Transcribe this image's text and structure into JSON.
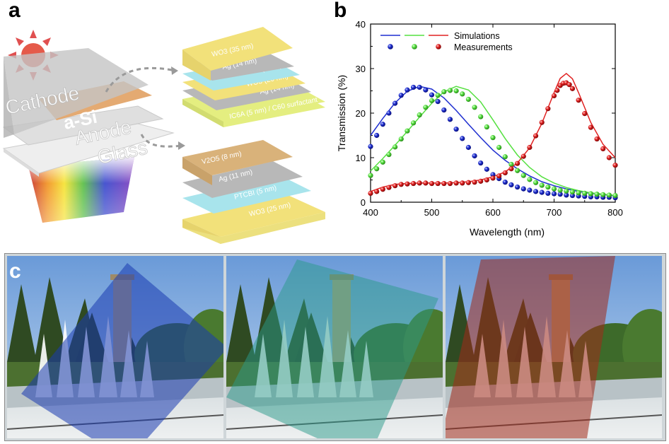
{
  "panels": {
    "a": {
      "letter": "a",
      "device_labels": [
        "Cathode",
        "a-Si",
        "Anode",
        "Glass"
      ],
      "stack_top": [
        "WO3 (35 nm)",
        "Ag (14 nm)",
        "PTCBI (5 nm)",
        "WO3 (20 nm)",
        "Ag (14 nm)",
        "IC6A (5 nm) / C60 surfactant"
      ],
      "stack_bottom": [
        "V2O5 (8 nm)",
        "Ag (11 nm)",
        "PTCBI (5 nm)",
        "WO3 (25 nm)"
      ],
      "colors": {
        "wo3": "#f2e17a",
        "ag": "#b8b8b8",
        "ptcbi": "#a8e4ec",
        "v2o5": "#d9b27a",
        "surfactant": "#e4ee80",
        "asi": "#e0a060"
      }
    },
    "b": {
      "letter": "b"
    },
    "c": {
      "letter": "c"
    }
  },
  "chart_data": {
    "type": "line",
    "xlabel": "Wavelength (nm)",
    "ylabel": "Transmission (%)",
    "xlim": [
      400,
      800
    ],
    "ylim": [
      0,
      40
    ],
    "xticks": [
      400,
      500,
      600,
      700,
      800
    ],
    "yticks": [
      0,
      10,
      20,
      30,
      40
    ],
    "grid": false,
    "legend": {
      "placement": "top-left",
      "entries": [
        {
          "label": "Simulations",
          "style": "line",
          "colors": [
            "#1f2fd0",
            "#55e040",
            "#e02020"
          ]
        },
        {
          "label": "Measurements",
          "style": "sphere",
          "colors": [
            "#1f2fd0",
            "#55e040",
            "#e02020"
          ]
        }
      ]
    },
    "simulations": [
      {
        "color": "#1f2fd0",
        "x": [
          400,
          420,
          440,
          460,
          480,
          500,
          520,
          540,
          560,
          580,
          600,
          620,
          640,
          660,
          680,
          700,
          720,
          740,
          760,
          780,
          800
        ],
        "y": [
          15,
          18.8,
          22.3,
          24.9,
          26,
          25.4,
          23.4,
          20.6,
          17.5,
          14.5,
          11.7,
          9.4,
          7.5,
          5.9,
          4.6,
          3.7,
          3,
          2.4,
          2,
          1.7,
          1.4
        ]
      },
      {
        "color": "#55e040",
        "x": [
          400,
          420,
          440,
          460,
          480,
          500,
          520,
          540,
          560,
          580,
          600,
          620,
          640,
          660,
          680,
          700,
          720,
          740,
          760,
          780,
          800
        ],
        "y": [
          7,
          9.8,
          12.8,
          15.9,
          19.1,
          22.2,
          24.8,
          26,
          25.2,
          22.5,
          18.5,
          14.3,
          10.6,
          7.8,
          5.7,
          4.3,
          3.3,
          2.6,
          2.1,
          1.8,
          1.5
        ]
      },
      {
        "color": "#e02020",
        "x": [
          400,
          420,
          440,
          460,
          480,
          500,
          520,
          540,
          560,
          580,
          600,
          620,
          640,
          660,
          680,
          700,
          710,
          720,
          730,
          740,
          760,
          780,
          800
        ],
        "y": [
          2.4,
          3.4,
          4,
          4.2,
          4.3,
          4.3,
          4.3,
          4.4,
          4.6,
          5,
          5.7,
          6.8,
          8.8,
          12.2,
          17.7,
          24.6,
          27.8,
          28.9,
          27.7,
          24.6,
          17.9,
          13,
          10
        ]
      }
    ],
    "measurements": [
      {
        "color": "#1f2fd0",
        "x": [
          400,
          410,
          420,
          430,
          440,
          450,
          460,
          470,
          480,
          490,
          500,
          510,
          520,
          530,
          540,
          550,
          560,
          570,
          580,
          590,
          600,
          610,
          620,
          630,
          640,
          650,
          660,
          670,
          680,
          690,
          700,
          710,
          720,
          730,
          740,
          750,
          760,
          770,
          780,
          790,
          800
        ],
        "y": [
          12.5,
          15,
          17.5,
          20,
          22.2,
          24,
          25.2,
          25.8,
          25.8,
          25.2,
          24.1,
          22.6,
          20.7,
          18.6,
          16.4,
          14.3,
          12.3,
          10.4,
          8.8,
          7.4,
          6.2,
          5.3,
          4.5,
          3.9,
          3.4,
          3,
          2.7,
          2.4,
          2.2,
          2,
          1.9,
          1.8,
          1.6,
          1.5,
          1.4,
          1.3,
          1.2,
          1.2,
          1.1,
          1.1,
          1
        ]
      },
      {
        "color": "#55e040",
        "x": [
          400,
          410,
          420,
          430,
          440,
          450,
          460,
          470,
          480,
          490,
          500,
          510,
          520,
          530,
          540,
          550,
          560,
          570,
          580,
          590,
          600,
          610,
          620,
          630,
          640,
          650,
          660,
          670,
          680,
          690,
          700,
          710,
          720,
          730,
          740,
          750,
          760,
          770,
          780,
          790,
          800
        ],
        "y": [
          6,
          7.5,
          9,
          10.7,
          12.4,
          14.2,
          16,
          17.8,
          19.6,
          21.3,
          22.8,
          24,
          24.8,
          25.1,
          25,
          24.3,
          23.1,
          21.3,
          19.2,
          16.9,
          14.5,
          12.3,
          10.2,
          8.5,
          7.1,
          6,
          5.1,
          4.4,
          3.8,
          3.4,
          3,
          2.7,
          2.5,
          2.3,
          2.1,
          2,
          1.9,
          1.8,
          1.7,
          1.6,
          1.5
        ]
      },
      {
        "color": "#e02020",
        "x": [
          400,
          410,
          420,
          430,
          440,
          450,
          460,
          470,
          480,
          490,
          500,
          510,
          520,
          530,
          540,
          550,
          560,
          570,
          580,
          590,
          600,
          610,
          620,
          630,
          640,
          650,
          660,
          670,
          680,
          690,
          700,
          705,
          710,
          715,
          720,
          725,
          730,
          740,
          750,
          760,
          770,
          780,
          790,
          800
        ],
        "y": [
          2,
          2.4,
          2.9,
          3.3,
          3.7,
          4,
          4.1,
          4.2,
          4.3,
          4.3,
          4.2,
          4.2,
          4.2,
          4.2,
          4.3,
          4.3,
          4.4,
          4.5,
          4.7,
          5,
          5.4,
          5.9,
          6.6,
          7.5,
          8.7,
          10.3,
          12.3,
          14.9,
          17.9,
          21,
          23.9,
          25.1,
          26.2,
          26.7,
          26.8,
          26.4,
          25.5,
          22.9,
          19.9,
          16.8,
          14.2,
          12,
          10,
          8.3
        ]
      }
    ]
  }
}
